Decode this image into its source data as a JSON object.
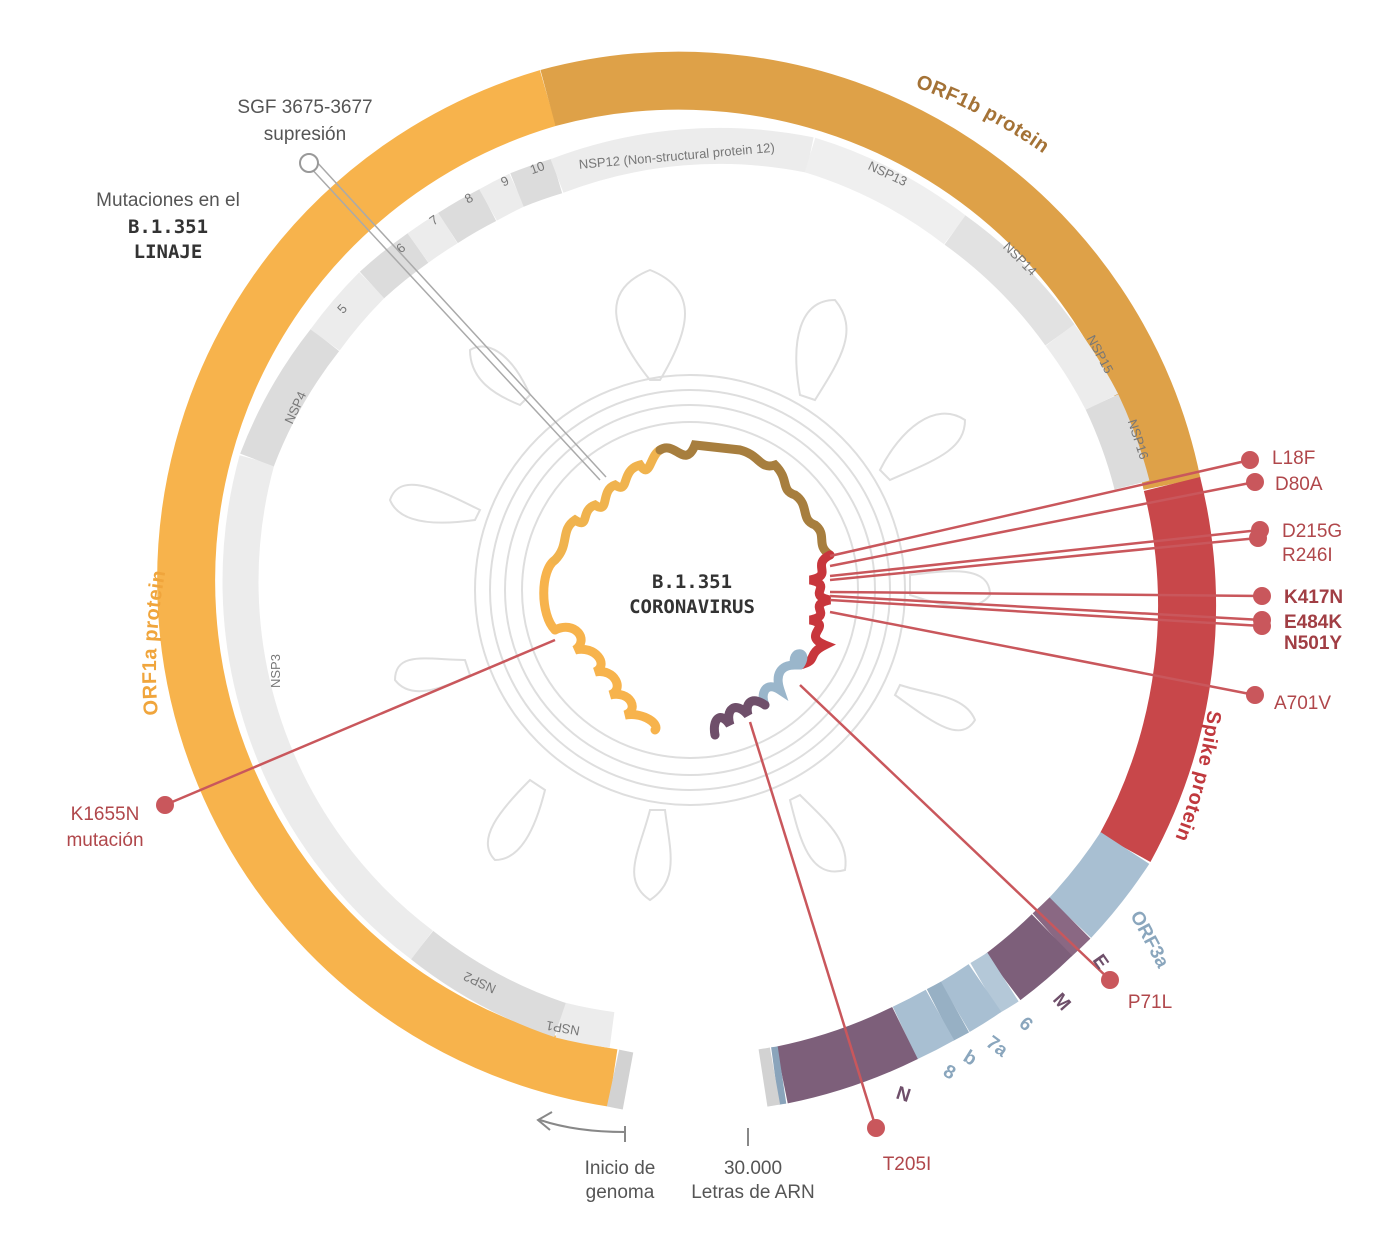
{
  "title": {
    "line1": "Mutaciones en el",
    "line2": "B.1.351",
    "line3": "LINAJE"
  },
  "center": {
    "line1": "B.1.351",
    "line2": "CORONAVIRUS"
  },
  "genes": {
    "orf1a": "ORF1a protein",
    "orf1b": "ORF1b protein",
    "spike": "Spike protein",
    "orf3a": "ORF3a",
    "e": "E",
    "m": "M",
    "g6": "6",
    "g7a": "7a",
    "g7b": "b",
    "g8": "8",
    "n": "N"
  },
  "nsp": {
    "nsp1": "NSP1",
    "nsp2": "NSP2",
    "nsp3": "NSP3",
    "nsp4": "NSP4",
    "n5": "5",
    "n6": "6",
    "n7": "7",
    "n8": "8",
    "n9": "9",
    "n10": "10",
    "nsp12": "NSP12 (Non-structural protein 12)",
    "nsp13": "NSP13",
    "nsp14": "NSP14",
    "nsp15": "NSP15",
    "nsp16": "NSP16"
  },
  "annotations": {
    "sgf_line1": "SGF 3675-3677",
    "sgf_line2": "supresión",
    "k1655n_line1": "K1655N",
    "k1655n_line2": "mutación",
    "start_line1": "Inicio de",
    "start_line2": "genoma",
    "end_line1": "30.000",
    "end_line2": "Letras de ARN"
  },
  "mutations": {
    "l18f": "L18F",
    "d80a": "D80A",
    "d215g": "D215G",
    "r246i": "R246I",
    "k417n": "K417N",
    "e484k": "E484K",
    "n501y": "N501Y",
    "a701v": "A701V",
    "p71l": "P71L",
    "t205i": "T205I"
  },
  "colors": {
    "orf1a": "#f7b34c",
    "orf1b": "#dea148",
    "spike": "#c8474a",
    "accessory_blue": "#a8bfd2",
    "structural_purple": "#7d5f7a",
    "mutation_red": "#c9575c",
    "nsp_light": "#ececec",
    "nsp_dark": "#dcdcdc"
  }
}
